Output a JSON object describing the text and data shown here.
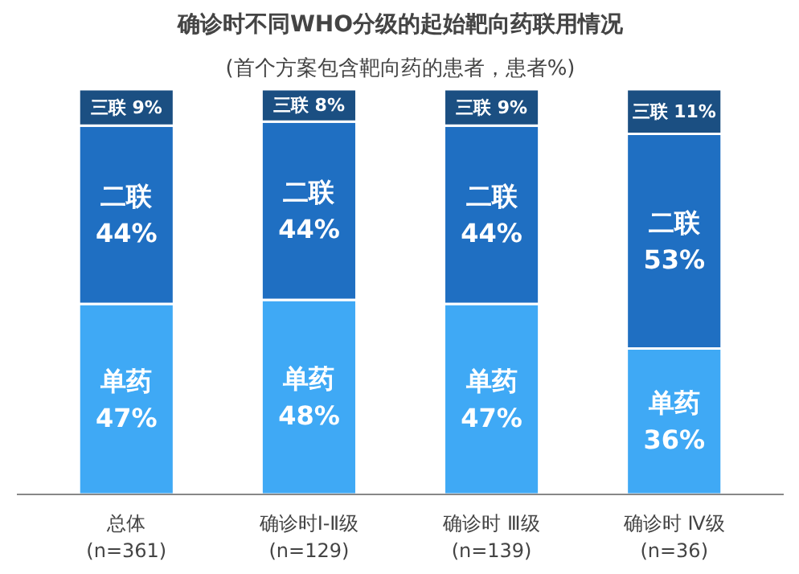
{
  "chart_data": {
    "type": "bar",
    "stacked": true,
    "title": "确诊时不同WHO分级的起始靶向药联用情况",
    "subtitle": "(首个方案包含靶向药的患者，患者%)",
    "categories": [
      "总体\n(n=361)",
      "确诊时Ⅰ-Ⅱ级\n(n=129)",
      "确诊时 Ⅲ级\n(n=139)",
      "确诊时 Ⅳ级\n(n=36)"
    ],
    "series": [
      {
        "name": "单药",
        "color": "#3fa9f5",
        "values": [
          47,
          48,
          47,
          36
        ],
        "value_labels": [
          "47%",
          "48%",
          "47%",
          "36%"
        ]
      },
      {
        "name": "二联",
        "color": "#1f6fc2",
        "values": [
          44,
          44,
          44,
          53
        ],
        "value_labels": [
          "44%",
          "44%",
          "44%",
          "53%"
        ]
      },
      {
        "name": "三联",
        "color": "#1b4f82",
        "values": [
          9,
          8,
          9,
          11
        ],
        "value_labels": [
          "9%",
          "8%",
          "9%",
          "11%"
        ]
      }
    ],
    "grid": false
  }
}
